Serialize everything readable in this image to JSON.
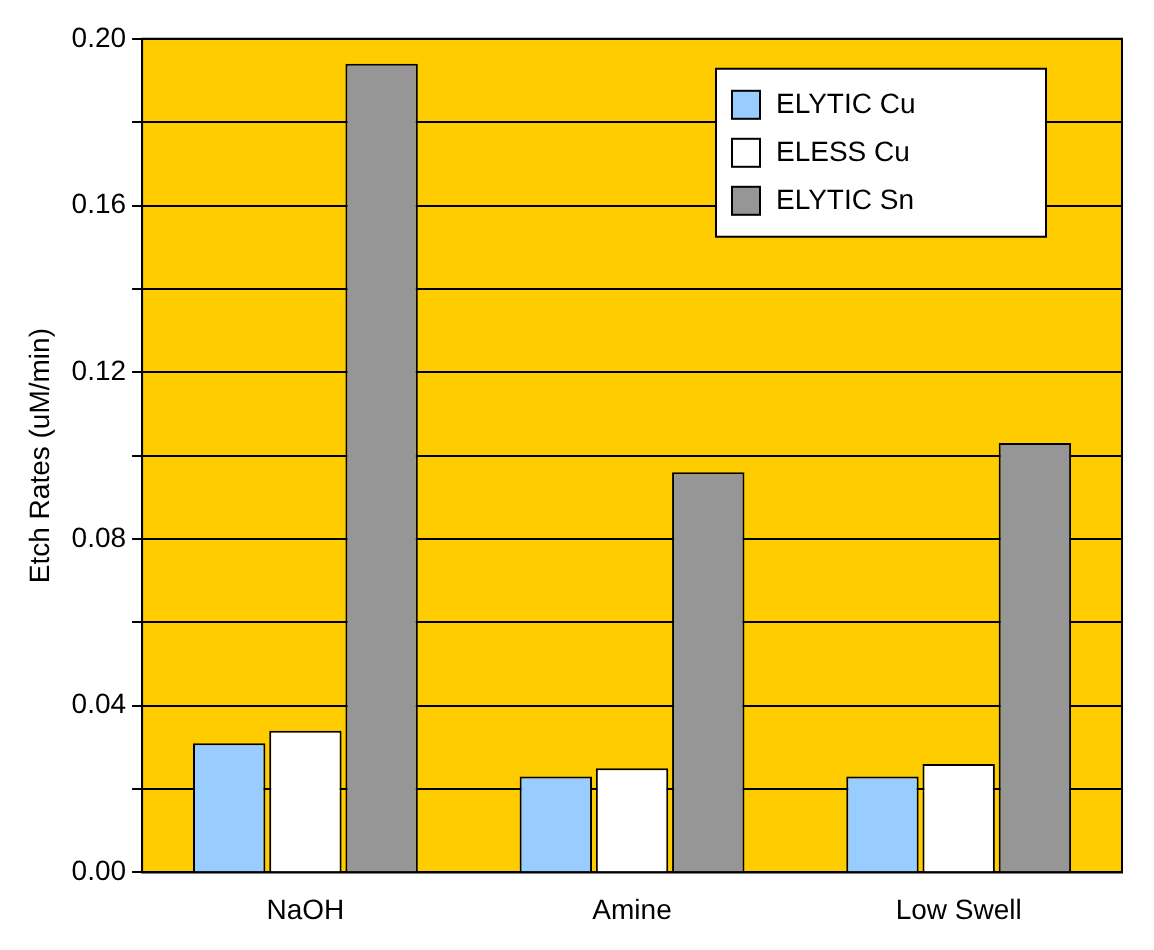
{
  "chart_data": {
    "type": "bar",
    "ylabel": "Etch Rates (uM/min)",
    "categories": [
      "NaOH",
      "Amine",
      "Low Swell"
    ],
    "series": [
      {
        "name": "ELYTIC Cu",
        "color": "#99ccff",
        "values": [
          0.031,
          0.023,
          0.023
        ]
      },
      {
        "name": "ELESS Cu",
        "color": "#ffffff",
        "values": [
          0.034,
          0.025,
          0.026
        ]
      },
      {
        "name": "ELYTIC Sn",
        "color": "#969696",
        "values": [
          0.194,
          0.096,
          0.103
        ]
      }
    ],
    "ylim": [
      0,
      0.2
    ],
    "yticks": [
      {
        "value": 0,
        "label": "0.00"
      },
      {
        "value": 0.02,
        "label": null
      },
      {
        "value": 0.04,
        "label": "0.04"
      },
      {
        "value": 0.06,
        "label": null
      },
      {
        "value": 0.08,
        "label": "0.08"
      },
      {
        "value": 0.1,
        "label": null
      },
      {
        "value": 0.12,
        "label": "0.12"
      },
      {
        "value": 0.14,
        "label": null
      },
      {
        "value": 0.16,
        "label": "0.16"
      },
      {
        "value": 0.18,
        "label": null
      },
      {
        "value": 0.2,
        "label": "0.20"
      }
    ],
    "grid": "y",
    "legend": "top right"
  }
}
